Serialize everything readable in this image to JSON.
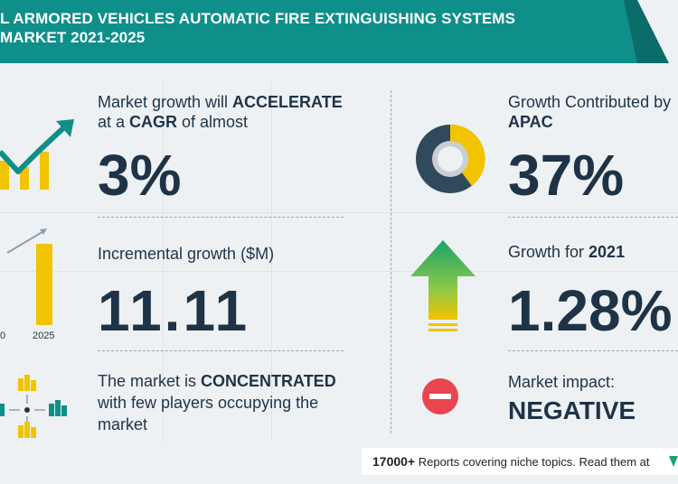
{
  "banner": {
    "title_line1": "L ARMORED VEHICLES AUTOMATIC FIRE EXTINGUISHING SYSTEMS",
    "title_line2": "MARKET 2021-2025"
  },
  "left": {
    "growth": {
      "prefix": "Market growth will ",
      "strong": "ACCELERATE",
      "line2_prefix": "at a ",
      "line2_strong": "CAGR",
      "line2_suffix": " of almost",
      "value": "3%"
    },
    "incremental": {
      "label": "Incremental growth ($M)",
      "value": "11.11",
      "axis_left": "0",
      "axis_right": "2025"
    },
    "market": {
      "prefix": "The market is ",
      "strong": "CONCENTRATED",
      "line2": "with few players occupying the",
      "line3": "market"
    }
  },
  "right": {
    "contribution": {
      "label": "Growth Contributed by",
      "region": "APAC",
      "value": "37%"
    },
    "growth_year": {
      "label": "Growth for ",
      "year": "2021",
      "value": "1.28%"
    },
    "impact": {
      "label": "Market impact:",
      "value": "NEGATIVE"
    }
  },
  "footer": {
    "count": "17000+",
    "text": " Reports covering niche topics. Read them at"
  },
  "colors": {
    "teal": "#0f8f8a",
    "navy": "#1f3347",
    "yellow": "#f2c400",
    "red": "#e8454e",
    "green": "#1aa36b"
  }
}
